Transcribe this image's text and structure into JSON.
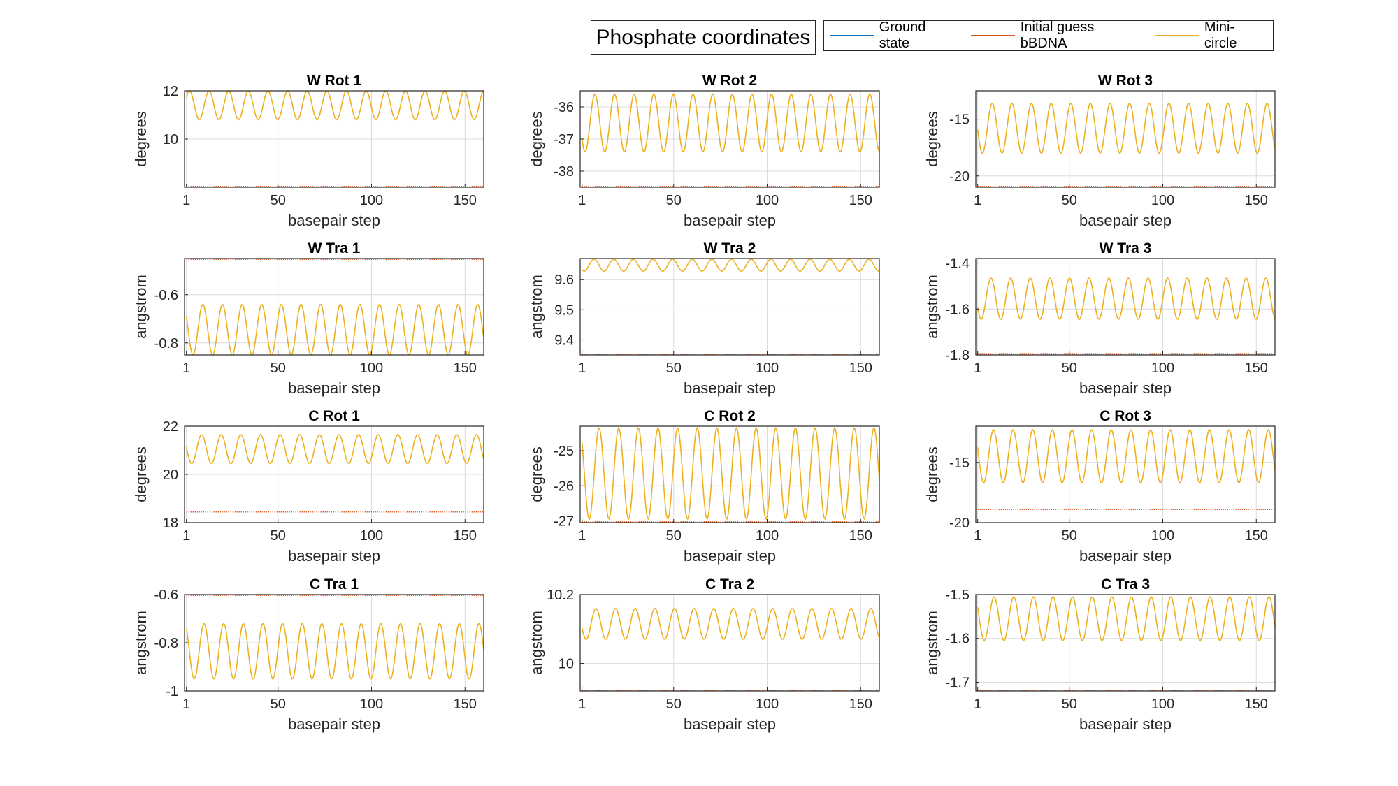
{
  "figure_title": "Phosphate coordinates",
  "legend": [
    {
      "label": "Ground state",
      "color": "#0072BD"
    },
    {
      "label": "Initial guess bBDNA",
      "color": "#D95319"
    },
    {
      "label": "Mini-circle",
      "color": "#EDB120"
    }
  ],
  "chart_data": [
    {
      "type": "line",
      "title": "W Rot 1",
      "xlabel": "basepair step",
      "ylabel": "degrees",
      "xlim": [
        0,
        160
      ],
      "ylim": [
        8,
        12
      ],
      "xticks": [
        1,
        50,
        100,
        150
      ],
      "yticks": [
        10,
        12
      ],
      "series": [
        {
          "name": "Initial guess bBDNA",
          "color": "#D95319",
          "constant": 8.0
        },
        {
          "name": "Mini-circle",
          "color": "#EDB120",
          "center": 11.4,
          "amplitude": 0.6,
          "period": 10.5,
          "phase": 0.0
        }
      ]
    },
    {
      "type": "line",
      "title": "W Rot 2",
      "xlabel": "basepair step",
      "ylabel": "degrees",
      "xlim": [
        0,
        160
      ],
      "ylim": [
        -38.5,
        -35.5
      ],
      "xticks": [
        1,
        50,
        100,
        150
      ],
      "yticks": [
        -38,
        -37,
        -36
      ],
      "series": [
        {
          "name": "Initial guess bBDNA",
          "color": "#D95319",
          "constant": -38.5
        },
        {
          "name": "Mini-circle",
          "color": "#EDB120",
          "center": -36.5,
          "amplitude": 0.9,
          "period": 10.5,
          "phase": 3.14
        }
      ]
    },
    {
      "type": "line",
      "title": "W Rot 3",
      "xlabel": "basepair step",
      "ylabel": "degrees",
      "xlim": [
        0,
        160
      ],
      "ylim": [
        -21,
        -12.5
      ],
      "xticks": [
        1,
        50,
        100,
        150
      ],
      "yticks": [
        -20,
        -15
      ],
      "series": [
        {
          "name": "Initial guess bBDNA",
          "color": "#D95319",
          "constant": -21.0
        },
        {
          "name": "Mini-circle",
          "color": "#EDB120",
          "center": -15.8,
          "amplitude": 2.2,
          "period": 10.5,
          "phase": 2.6
        }
      ]
    },
    {
      "type": "line",
      "title": "W Tra 1",
      "xlabel": "basepair step",
      "ylabel": "angstrom",
      "xlim": [
        0,
        160
      ],
      "ylim": [
        -0.85,
        -0.45
      ],
      "xticks": [
        1,
        50,
        100,
        150
      ],
      "yticks": [
        -0.8,
        -0.6
      ],
      "series": [
        {
          "name": "Initial guess bBDNA",
          "color": "#D95319",
          "constant": -0.45
        },
        {
          "name": "Mini-circle",
          "color": "#EDB120",
          "center": -0.745,
          "amplitude": 0.105,
          "period": 10.5,
          "phase": 2.0
        }
      ]
    },
    {
      "type": "line",
      "title": "W Tra 2",
      "xlabel": "basepair step",
      "ylabel": "angstrom",
      "xlim": [
        0,
        160
      ],
      "ylim": [
        9.35,
        9.67
      ],
      "xticks": [
        1,
        50,
        100,
        150
      ],
      "yticks": [
        9.4,
        9.5,
        9.6
      ],
      "series": [
        {
          "name": "Initial guess bBDNA",
          "color": "#D95319",
          "constant": 9.35
        },
        {
          "name": "Mini-circle",
          "color": "#EDB120",
          "center": 9.648,
          "amplitude": 0.02,
          "period": 10.5,
          "phase": 3.4
        }
      ]
    },
    {
      "type": "line",
      "title": "W Tra 3",
      "xlabel": "basepair step",
      "ylabel": "angstrom",
      "xlim": [
        0,
        160
      ],
      "ylim": [
        -1.8,
        -1.38
      ],
      "xticks": [
        1,
        50,
        100,
        150
      ],
      "yticks": [
        -1.8,
        -1.6,
        -1.4
      ],
      "series": [
        {
          "name": "Initial guess bBDNA",
          "color": "#D95319",
          "constant": -1.795
        },
        {
          "name": "Mini-circle",
          "color": "#EDB120",
          "center": -1.555,
          "amplitude": 0.09,
          "period": 10.5,
          "phase": 3.0
        }
      ]
    },
    {
      "type": "line",
      "title": "C Rot 1",
      "xlabel": "basepair step",
      "ylabel": "degrees",
      "xlim": [
        0,
        160
      ],
      "ylim": [
        18,
        22
      ],
      "xticks": [
        1,
        50,
        100,
        150
      ],
      "yticks": [
        18,
        20,
        22
      ],
      "series": [
        {
          "name": "Initial guess bBDNA",
          "color": "#D95319",
          "constant": 18.45
        },
        {
          "name": "Mini-circle",
          "color": "#EDB120",
          "center": 21.05,
          "amplitude": 0.6,
          "period": 10.5,
          "phase": 2.4
        }
      ]
    },
    {
      "type": "line",
      "title": "C Rot 2",
      "xlabel": "basepair step",
      "ylabel": "degrees",
      "xlim": [
        0,
        160
      ],
      "ylim": [
        -27.05,
        -24.3
      ],
      "xticks": [
        1,
        50,
        100,
        150
      ],
      "yticks": [
        -27,
        -26,
        -25
      ],
      "series": [
        {
          "name": "Initial guess bBDNA",
          "color": "#D95319",
          "constant": -27.05
        },
        {
          "name": "Mini-circle",
          "color": "#EDB120",
          "center": -25.65,
          "amplitude": 1.3,
          "period": 10.5,
          "phase": 1.8
        }
      ]
    },
    {
      "type": "line",
      "title": "C Rot 3",
      "xlabel": "basepair step",
      "ylabel": "degrees",
      "xlim": [
        0,
        160
      ],
      "ylim": [
        -20,
        -12
      ],
      "xticks": [
        1,
        50,
        100,
        150
      ],
      "yticks": [
        -20,
        -15
      ],
      "series": [
        {
          "name": "Initial guess bBDNA",
          "color": "#D95319",
          "constant": -18.9
        },
        {
          "name": "Mini-circle",
          "color": "#EDB120",
          "center": -14.5,
          "amplitude": 2.2,
          "period": 10.5,
          "phase": 2.2
        }
      ]
    },
    {
      "type": "line",
      "title": "C Tra 1",
      "xlabel": "basepair step",
      "ylabel": "angstrom",
      "xlim": [
        0,
        160
      ],
      "ylim": [
        -1.0,
        -0.6
      ],
      "xticks": [
        1,
        50,
        100,
        150
      ],
      "yticks": [
        -1,
        -0.8,
        -0.6
      ],
      "series": [
        {
          "name": "Initial guess bBDNA",
          "color": "#D95319",
          "constant": -0.6
        },
        {
          "name": "Mini-circle",
          "color": "#EDB120",
          "center": -0.835,
          "amplitude": 0.115,
          "period": 10.5,
          "phase": 1.6
        }
      ]
    },
    {
      "type": "line",
      "title": "C Tra 2",
      "xlabel": "basepair step",
      "ylabel": "angstrom",
      "xlim": [
        0,
        160
      ],
      "ylim": [
        9.92,
        10.2
      ],
      "xticks": [
        1,
        50,
        100,
        150
      ],
      "yticks": [
        10,
        10.2
      ],
      "series": [
        {
          "name": "Initial guess bBDNA",
          "color": "#D95319",
          "constant": 9.92
        },
        {
          "name": "Mini-circle",
          "color": "#EDB120",
          "center": 10.115,
          "amplitude": 0.045,
          "period": 10.5,
          "phase": 2.8
        }
      ]
    },
    {
      "type": "line",
      "title": "C Tra 3",
      "xlabel": "basepair step",
      "ylabel": "angstrom",
      "xlim": [
        0,
        160
      ],
      "ylim": [
        -1.72,
        -1.5
      ],
      "xticks": [
        1,
        50,
        100,
        150
      ],
      "yticks": [
        -1.7,
        -1.6,
        -1.5
      ],
      "series": [
        {
          "name": "Initial guess bBDNA",
          "color": "#D95319",
          "constant": -1.72
        },
        {
          "name": "Mini-circle",
          "color": "#EDB120",
          "center": -1.555,
          "amplitude": 0.05,
          "period": 10.5,
          "phase": 2.0
        }
      ]
    }
  ]
}
